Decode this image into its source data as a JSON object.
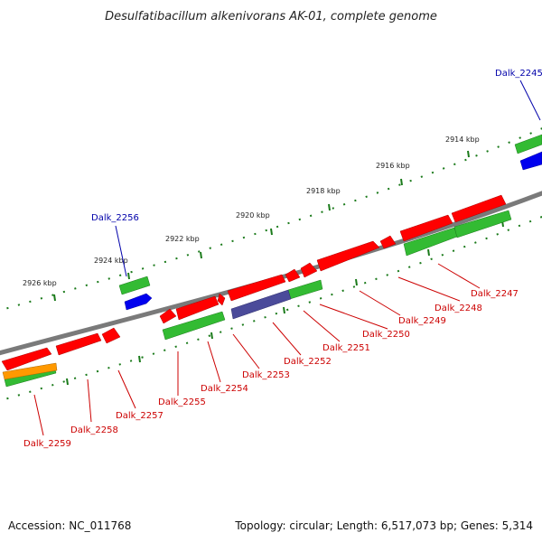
{
  "header": {
    "title": "Desulfatibacillum alkenivorans AK-01, complete genome"
  },
  "footer": {
    "accession": "Accession: NC_011768",
    "summary": "Topology: circular; Length: 6,517,073 bp; Genes: 5,314"
  },
  "colors": {
    "backbone": "#7a7a7a",
    "forward_gene": "#ff0000",
    "reverse_gene": "#ff0000",
    "cds_feature": "#33bb33",
    "highlight_feature": "#4b4b9a",
    "other_feature": "#ff9900",
    "blue_feature": "#0000ee",
    "tick": "#1a7a1a",
    "red_label": "#cc0000",
    "blue_label": "#0000aa"
  },
  "scale_labels": [
    "2926 kbp",
    "2924 kbp",
    "2922 kbp",
    "2920 kbp",
    "2918 kbp",
    "2916 kbp",
    "2914 kbp"
  ],
  "gene_labels": {
    "Dalk_2245": "Dalk_2245",
    "Dalk_2256": "Dalk_2256",
    "Dalk_2247": "Dalk_2247",
    "Dalk_2248": "Dalk_2248",
    "Dalk_2249": "Dalk_2249",
    "Dalk_2250": "Dalk_2250",
    "Dalk_2251": "Dalk_2251",
    "Dalk_2252": "Dalk_2252",
    "Dalk_2253": "Dalk_2253",
    "Dalk_2254": "Dalk_2254",
    "Dalk_2255": "Dalk_2255",
    "Dalk_2257": "Dalk_2257",
    "Dalk_2258": "Dalk_2258",
    "Dalk_2259": "Dalk_2259"
  }
}
